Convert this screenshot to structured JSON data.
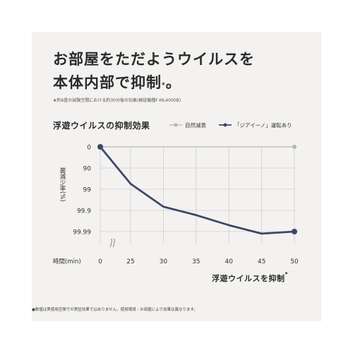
{
  "headline": {
    "line1": "お部屋をただようウイルスを",
    "line2": "本体内部で抑制",
    "mark": "*",
    "end": "。"
  },
  "note": "★約6畳の試験空間における約30分後の効果(検証機種F-ML4000B)",
  "footer": "●数値は実使用空間での実証効果ではありません。使用環境・お部屋により効果は異なります。",
  "colors": {
    "background": "#f3f2f0",
    "natural_series": "#b5b5b5",
    "ziaino_series": "#3e4866",
    "grid": "#cfcfcf"
  },
  "chart_data": {
    "type": "line",
    "title": "浮遊ウイルスの抑制効果",
    "ylabel": "菌減少率(%)",
    "xlabel": "時間(min)",
    "x_axis_title": "浮遊ウイルスを抑制",
    "x_axis_title_mark": "*",
    "x": [
      0,
      25,
      30,
      35,
      40,
      45,
      50
    ],
    "y_ticks": [
      "0",
      "90",
      "99",
      "99.9",
      "99.99"
    ],
    "y_scale": "log-reduction",
    "axis_break_between": [
      0,
      25
    ],
    "grid": true,
    "legend_position": "top-right",
    "series": [
      {
        "name": "自然減衰",
        "x": [
          0,
          50
        ],
        "y": [
          0,
          0
        ],
        "color": "#b5b5b5"
      },
      {
        "name": "「ジアイーノ」運転あり",
        "x": [
          0,
          25,
          30,
          35,
          40,
          45,
          50
        ],
        "y": [
          0,
          98.2,
          99.85,
          99.94,
          99.98,
          99.992,
          99.99
        ],
        "color": "#3e4866"
      }
    ]
  }
}
